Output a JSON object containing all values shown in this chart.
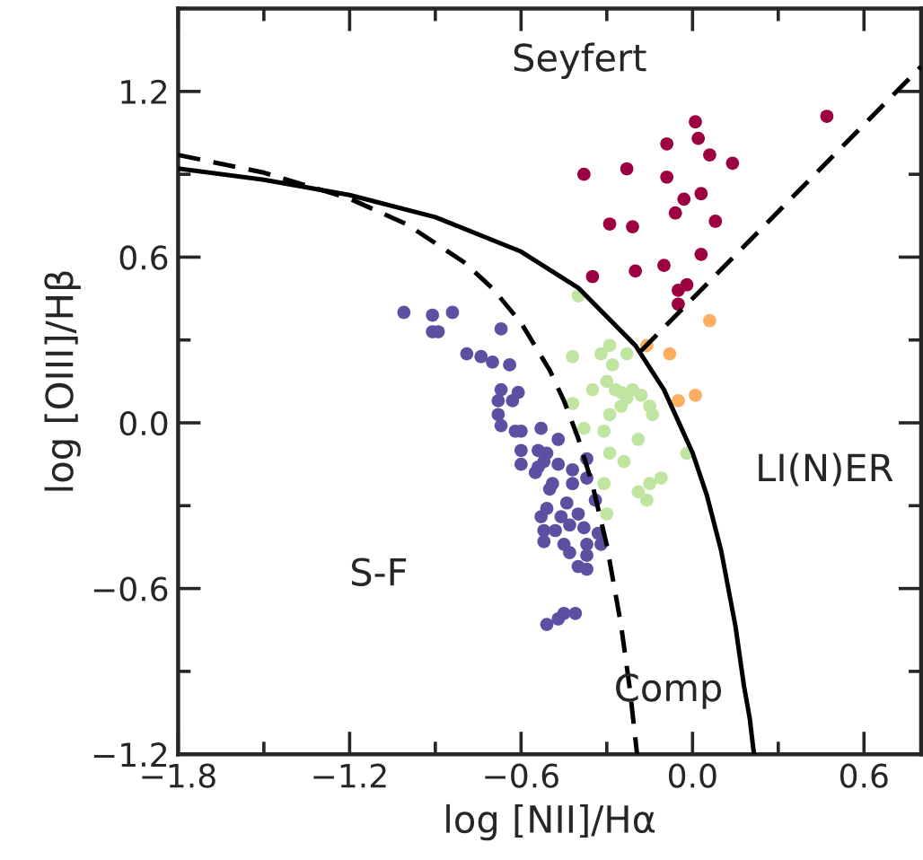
{
  "chart_data": {
    "type": "scatter",
    "xlabel": "log [NII]/Hα",
    "ylabel": "log [OIII]/Hβ",
    "xlim": [
      -1.8,
      0.8
    ],
    "ylim": [
      -1.2,
      1.5
    ],
    "xticks": [
      {
        "value": -1.8,
        "label": "−1.8"
      },
      {
        "value": -1.5,
        "label": null
      },
      {
        "value": -1.2,
        "label": "−1.2"
      },
      {
        "value": -0.9,
        "label": null
      },
      {
        "value": -0.6,
        "label": "−0.6"
      },
      {
        "value": -0.3,
        "label": null
      },
      {
        "value": 0.0,
        "label": "0.0"
      },
      {
        "value": 0.3,
        "label": null
      },
      {
        "value": 0.6,
        "label": "0.6"
      }
    ],
    "yticks": [
      {
        "value": -1.2,
        "label": "−1.2"
      },
      {
        "value": -0.9,
        "label": null
      },
      {
        "value": -0.6,
        "label": "−0.6"
      },
      {
        "value": -0.3,
        "label": null
      },
      {
        "value": 0.0,
        "label": "0.0"
      },
      {
        "value": 0.3,
        "label": null
      },
      {
        "value": 0.6,
        "label": "0.6"
      },
      {
        "value": 0.9,
        "label": null
      },
      {
        "value": 1.2,
        "label": "1.2"
      }
    ],
    "grid": false,
    "legend": false,
    "marker": "circle",
    "annotations": [
      "Seyfert",
      "LI(N)ER",
      "S-F",
      "Comp"
    ],
    "series": [
      {
        "color": "#9e0142",
        "x": [
          0.47,
          0.01,
          0.02,
          -0.09,
          0.06,
          0.14,
          -0.38,
          -0.23,
          -0.09,
          -0.03,
          0.03,
          -0.06,
          0.08,
          -0.29,
          -0.21,
          0.03,
          -0.1,
          -0.2,
          -0.35,
          -0.05,
          -0.02,
          -0.05
        ],
        "values": [
          1.11,
          1.09,
          1.03,
          1.01,
          0.97,
          0.94,
          0.9,
          0.92,
          0.89,
          0.81,
          0.83,
          0.76,
          0.73,
          0.72,
          0.71,
          0.61,
          0.57,
          0.55,
          0.53,
          0.48,
          0.5,
          0.43
        ]
      },
      {
        "color": "#fdae61",
        "x": [
          0.06,
          -0.16,
          -0.08,
          -0.05,
          0.01
        ],
        "values": [
          0.37,
          0.28,
          0.25,
          0.08,
          0.1
        ]
      },
      {
        "color": "#bfe5a0",
        "x": [
          -0.4,
          -0.42,
          -0.32,
          -0.29,
          -0.23,
          -0.28,
          -0.3,
          -0.35,
          -0.27,
          -0.21,
          -0.18,
          -0.23,
          -0.25,
          -0.15,
          -0.14,
          -0.29,
          -0.42,
          -0.38,
          -0.31,
          -0.19,
          -0.29,
          -0.24,
          -0.02,
          -0.11,
          -0.15,
          -0.31,
          -0.19,
          -0.16,
          -0.3,
          -0.25
        ],
        "values": [
          0.46,
          0.24,
          0.25,
          0.28,
          0.25,
          0.21,
          0.15,
          0.12,
          0.12,
          0.12,
          0.1,
          0.09,
          0.06,
          0.06,
          0.03,
          0.03,
          0.07,
          -0.02,
          -0.03,
          -0.06,
          -0.11,
          -0.14,
          -0.11,
          -0.2,
          -0.22,
          -0.22,
          -0.25,
          -0.28,
          -0.33,
          0.11
        ]
      },
      {
        "color": "#5e4fa2",
        "x": [
          -1.01,
          -0.91,
          -0.84,
          -0.91,
          -0.89,
          -0.67,
          -0.79,
          -0.74,
          -0.7,
          -0.64,
          -0.67,
          -0.61,
          -0.68,
          -0.63,
          -0.68,
          -0.67,
          -0.62,
          -0.6,
          -0.53,
          -0.47,
          -0.6,
          -0.54,
          -0.51,
          -0.52,
          -0.6,
          -0.54,
          -0.47,
          -0.37,
          -0.55,
          -0.42,
          -0.37,
          -0.49,
          -0.42,
          -0.5,
          -0.34,
          -0.44,
          -0.51,
          -0.53,
          -0.46,
          -0.4,
          -0.43,
          -0.38,
          -0.52,
          -0.48,
          -0.33,
          -0.52,
          -0.45,
          -0.37,
          -0.32,
          -0.43,
          -0.37,
          -0.4,
          -0.37,
          -0.45,
          -0.41,
          -0.51,
          -0.47
        ],
        "values": [
          0.4,
          0.39,
          0.4,
          0.33,
          0.33,
          0.34,
          0.25,
          0.24,
          0.22,
          0.21,
          0.12,
          0.11,
          0.08,
          0.08,
          0.03,
          -0.01,
          -0.03,
          -0.03,
          -0.02,
          -0.06,
          -0.1,
          -0.1,
          -0.11,
          -0.14,
          -0.15,
          -0.16,
          -0.15,
          -0.13,
          -0.18,
          -0.17,
          -0.2,
          -0.22,
          -0.22,
          -0.24,
          -0.28,
          -0.29,
          -0.31,
          -0.34,
          -0.34,
          -0.33,
          -0.37,
          -0.38,
          -0.39,
          -0.39,
          -0.4,
          -0.43,
          -0.44,
          -0.44,
          -0.44,
          -0.47,
          -0.48,
          -0.52,
          -0.53,
          -0.69,
          -0.69,
          -0.73,
          -0.71
        ]
      },
      {
        "type": "line",
        "color": "#000000",
        "line_style": "dashed",
        "marker": "none",
        "x": [
          -1.8,
          -1.5,
          -1.2,
          -1.0,
          -0.8,
          -0.7,
          -0.6,
          -0.5,
          -0.45,
          -0.4,
          -0.35,
          -0.3,
          -0.25,
          -0.22,
          -0.194
        ],
        "values": [
          0.97,
          0.906,
          0.812,
          0.719,
          0.582,
          0.487,
          0.362,
          0.191,
          0.08,
          -0.056,
          -0.225,
          -0.443,
          -0.733,
          -0.959,
          -1.2
        ]
      },
      {
        "type": "line",
        "color": "#000000",
        "line_style": "solid",
        "marker": "none",
        "x": [
          -1.8,
          -1.5,
          -1.2,
          -0.9,
          -0.6,
          -0.4,
          -0.2,
          -0.1,
          0.0,
          0.05,
          0.1,
          0.15,
          0.18,
          0.2,
          0.215
        ],
        "values": [
          0.921,
          0.88,
          0.825,
          0.745,
          0.62,
          0.489,
          0.28,
          0.12,
          -0.108,
          -0.262,
          -0.462,
          -0.735,
          -0.953,
          -1.069,
          -1.2
        ]
      },
      {
        "type": "line",
        "color": "#000000",
        "line_style": "dashed",
        "marker": "none",
        "x": [
          -0.18,
          0.8
        ],
        "values": [
          0.261,
          1.29
        ]
      }
    ]
  }
}
